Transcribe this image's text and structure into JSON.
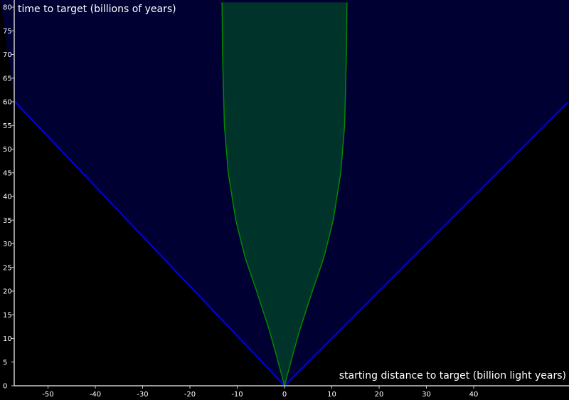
{
  "chart_data": {
    "type": "area",
    "title": "",
    "xlabel": "starting distance to target (billion light years)",
    "ylabel": "time to target (billions of years)",
    "xlim": [
      -57,
      60
    ],
    "ylim": [
      0,
      81
    ],
    "x_ticks": [
      "-50",
      "-40",
      "-30",
      "-20",
      "-10",
      "0",
      "10",
      "20",
      "30",
      "40"
    ],
    "y_ticks": [
      "0",
      "5",
      "10",
      "15",
      "20",
      "25",
      "30",
      "35",
      "40",
      "45",
      "50",
      "55",
      "60",
      "65",
      "70",
      "75",
      "80"
    ],
    "grid": false,
    "series": [
      {
        "kind": "light-cone",
        "color": "#0000ee",
        "fill": "#000033",
        "x": [
          -57,
          0,
          60
        ],
        "y": [
          60,
          0,
          60
        ]
      },
      {
        "kind": "reachable-region",
        "color": "#008800",
        "fill": "#00332a",
        "x": [
          -13.2,
          -13.1,
          -12.7,
          -11.9,
          -10.3,
          -8.3,
          -5.9,
          -3.3,
          -1.6,
          0,
          1.6,
          3.3,
          5.9,
          8.3,
          10.3,
          11.9,
          12.7,
          13.1,
          13.2
        ],
        "y": [
          81,
          70,
          55,
          45,
          35,
          27,
          20,
          12,
          6,
          0,
          6,
          12,
          20,
          27,
          35,
          45,
          55,
          70,
          81
        ]
      }
    ],
    "colors": {
      "background": "#000000",
      "axis": "#cccccc",
      "text": "#ffffff"
    }
  }
}
